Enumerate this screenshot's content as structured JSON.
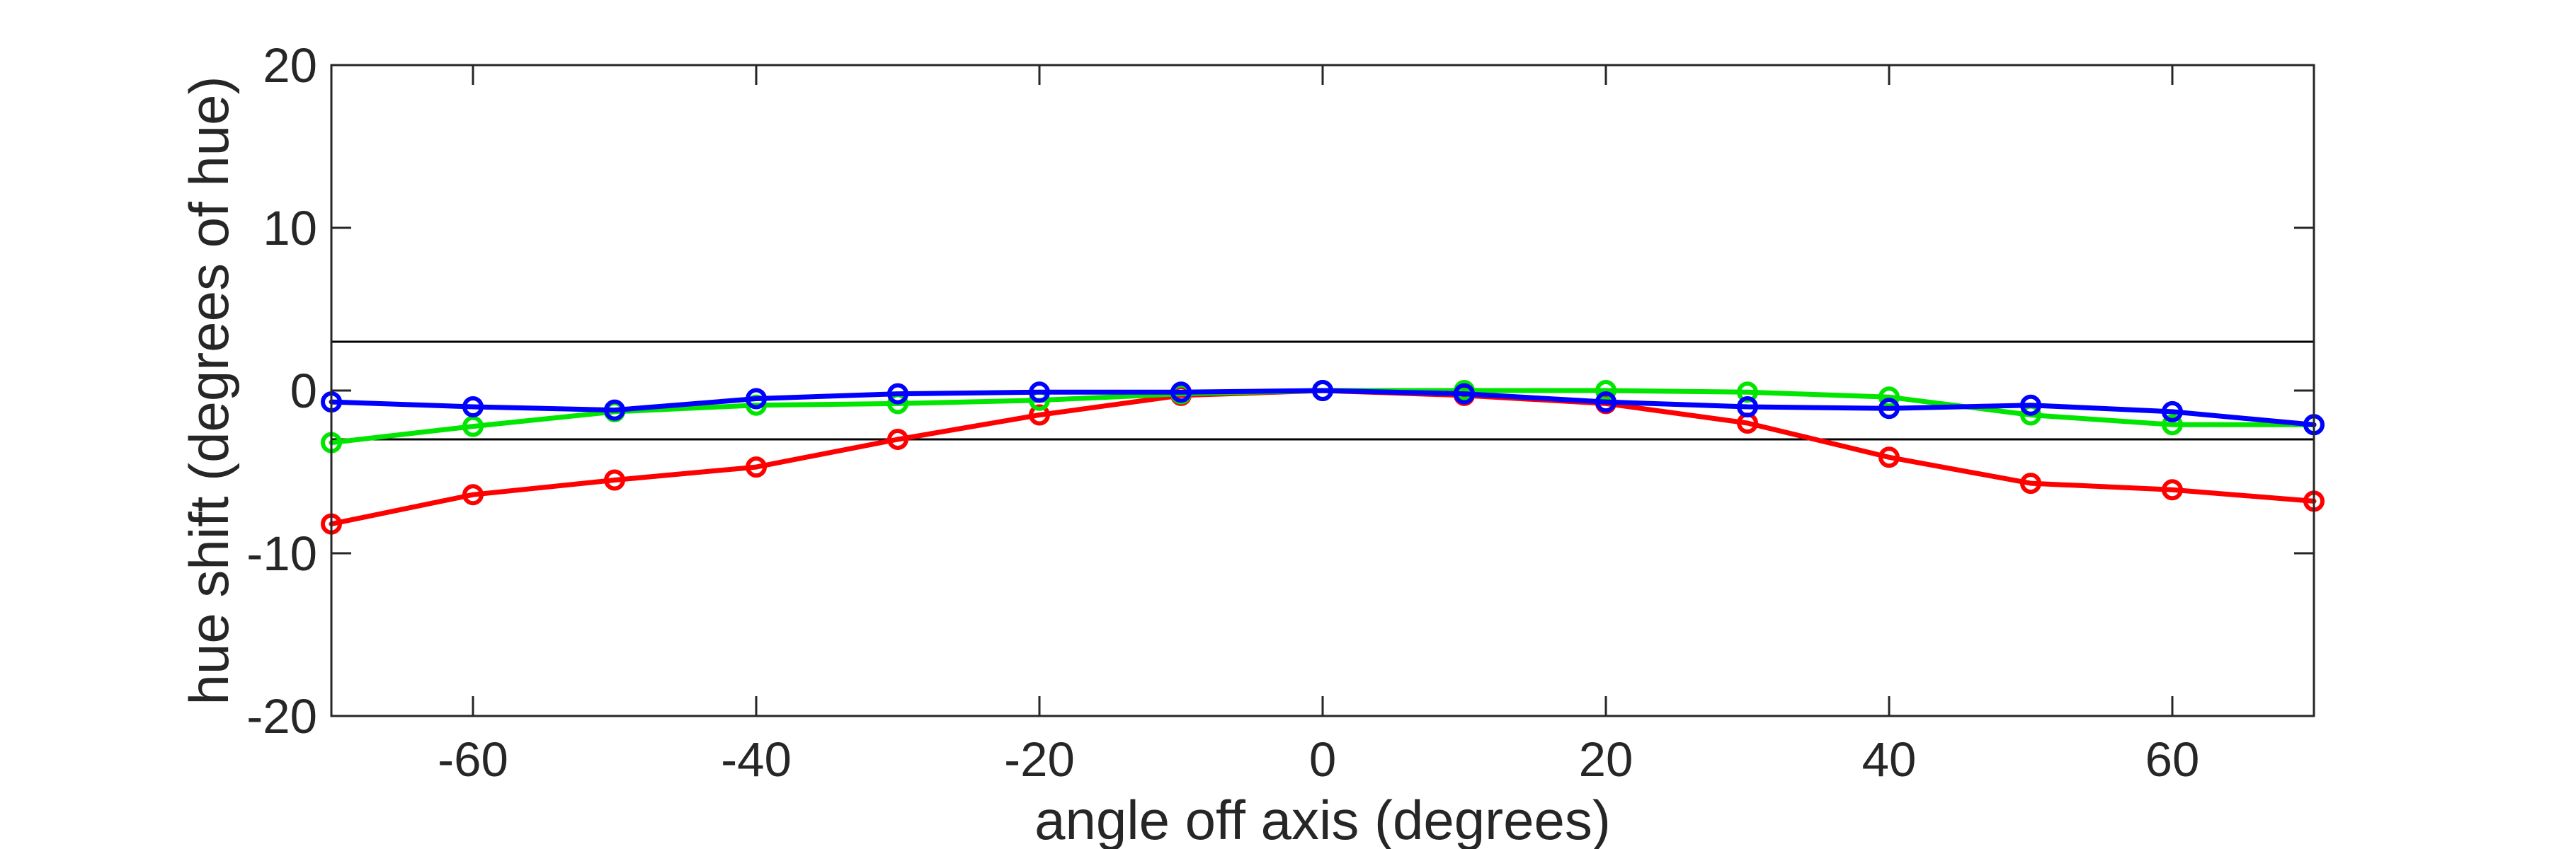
{
  "chart_data": {
    "type": "line",
    "xlabel": "angle off axis (degrees)",
    "ylabel": "hue shift (degrees of hue)",
    "xlim": [
      -70,
      70
    ],
    "ylim": [
      -20,
      20
    ],
    "xticks": [
      -60,
      -40,
      -20,
      0,
      20,
      40,
      60
    ],
    "yticks": [
      -20,
      -10,
      0,
      10,
      20
    ],
    "reference_lines_y": [
      3,
      -3
    ],
    "box": true,
    "grid": false,
    "x": [
      -70,
      -60,
      -50,
      -40,
      -30,
      -20,
      -10,
      0,
      10,
      20,
      30,
      40,
      50,
      60,
      70
    ],
    "series": [
      {
        "color": "#ff0000",
        "values": [
          -8.2,
          -6.4,
          -5.5,
          -4.7,
          -3.0,
          -1.5,
          -0.3,
          0.0,
          -0.3,
          -0.8,
          -2.0,
          -4.1,
          -5.7,
          -6.1,
          -6.8
        ]
      },
      {
        "color": "#00e600",
        "values": [
          -3.2,
          -2.2,
          -1.3,
          -0.9,
          -0.8,
          -0.6,
          -0.2,
          0.0,
          0.0,
          0.0,
          -0.1,
          -0.4,
          -1.5,
          -2.1,
          -2.1
        ]
      },
      {
        "color": "#0000ff",
        "values": [
          -0.7,
          -1.0,
          -1.2,
          -0.5,
          -0.2,
          -0.1,
          -0.1,
          0.0,
          -0.2,
          -0.7,
          -1.0,
          -1.1,
          -0.9,
          -1.3,
          -2.1
        ]
      }
    ]
  }
}
